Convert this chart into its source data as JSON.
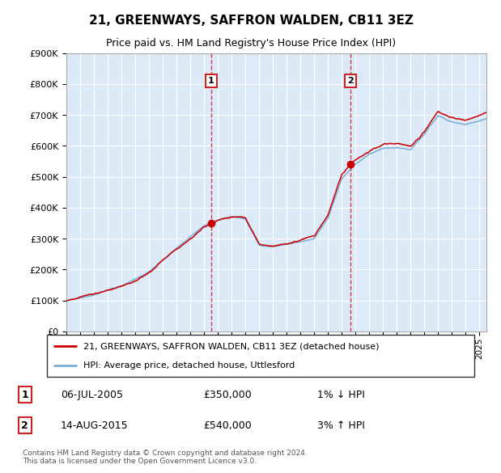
{
  "title": "21, GREENWAYS, SAFFRON WALDEN, CB11 3EZ",
  "subtitle": "Price paid vs. HM Land Registry's House Price Index (HPI)",
  "ylim": [
    0,
    900000
  ],
  "yticks": [
    0,
    100000,
    200000,
    300000,
    400000,
    500000,
    600000,
    700000,
    800000,
    900000
  ],
  "ytick_labels": [
    "£0",
    "£100K",
    "£200K",
    "£300K",
    "£400K",
    "£500K",
    "£600K",
    "£700K",
    "£800K",
    "£900K"
  ],
  "xlim_start": 1995.0,
  "xlim_end": 2025.5,
  "bg_color": "#dce9f7",
  "sale1_x": 2005.52,
  "sale1_y": 350000,
  "sale1_label": "1",
  "sale1_date": "06-JUL-2005",
  "sale1_price": "£350,000",
  "sale1_hpi": "1% ↓ HPI",
  "sale2_x": 2015.62,
  "sale2_y": 540000,
  "sale2_label": "2",
  "sale2_date": "14-AUG-2015",
  "sale2_price": "£540,000",
  "sale2_hpi": "3% ↑ HPI",
  "line1_color": "#cc0000",
  "line2_color": "#7aadd4",
  "legend1_label": "21, GREENWAYS, SAFFRON WALDEN, CB11 3EZ (detached house)",
  "legend2_label": "HPI: Average price, detached house, Uttlesford",
  "footer": "Contains HM Land Registry data © Crown copyright and database right 2024.\nThis data is licensed under the Open Government Licence v3.0.",
  "title_fontsize": 11,
  "subtitle_fontsize": 9
}
